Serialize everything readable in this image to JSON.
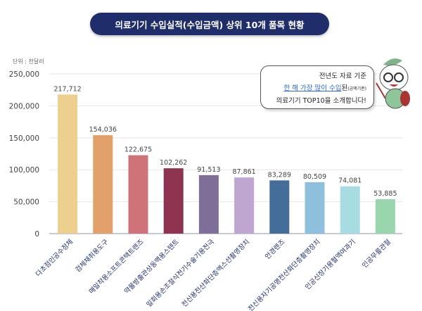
{
  "chart_data": {
    "type": "bar",
    "title": "의료기기 수입실적(수입금액) 상위 10개 품목 현황",
    "unit": "단위 : 천달러",
    "categories": [
      "다초점인공수정체",
      "검체채취용도구",
      "매일착용소프트콘택트렌즈",
      "약물방출관상동맥용스텐트",
      "일회용손조절식전기수술기용전극",
      "전신용전산화단층엑스선촬영장치",
      "안경렌즈",
      "전신용자기공명전산화단층촬영장치",
      "인공신장기용혈액여과기",
      "인공무릎관절"
    ],
    "values": [
      217712,
      154036,
      122675,
      102262,
      91513,
      87861,
      83289,
      80509,
      74081,
      53885
    ],
    "data_labels": [
      "217,712",
      "154,036",
      "122,675",
      "102,262",
      "91,513",
      "87,861",
      "83,289",
      "80,509",
      "74,081",
      "53,885"
    ],
    "colors": [
      "#edd08f",
      "#e2a06a",
      "#cf7378",
      "#8e3450",
      "#7d6f97",
      "#bfa6d0",
      "#446d99",
      "#8ec0de",
      "#a6dce2",
      "#9ad6ad"
    ],
    "ylim": [
      0,
      250000
    ],
    "yticks": [
      0,
      50000,
      100000,
      150000,
      200000,
      250000
    ],
    "ytick_labels": [
      "0",
      "50,000",
      "100,000",
      "150,000",
      "200,000",
      "250,000"
    ],
    "grid": true
  },
  "callout": {
    "line1": "전년도 자료 기준",
    "line2_highlight": "한 해 가장 많이 수입",
    "line2_rest": "된",
    "line2_small": "(금액기준)",
    "line3": "의료기기 TOP10을 소개합니다!"
  }
}
